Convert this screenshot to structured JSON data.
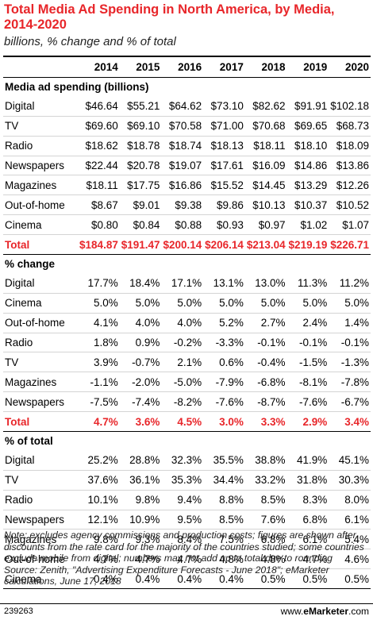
{
  "title": "Total Media Ad Spending in North America, by Media, 2014-2020",
  "subtitle": "billions, % change and % of total",
  "years": [
    "2014",
    "2015",
    "2016",
    "2017",
    "2018",
    "2019",
    "2020"
  ],
  "notes": "Note: excludes agency commissions and production costs; figures are shown after discounts from the rate card for the majority of the countries studied; some countries exclude mobile from digital; numbers may not add up to total due to rounding",
  "source": "Source: Zenith, \"Advertising Expenditure Forecasts - June 2018\"; eMarketer calculations, June 17, 2018",
  "footer": {
    "chart_id": "239263",
    "brand_prefix": "www.",
    "brand_main": "eMarketer",
    "brand_suffix": ".com"
  },
  "chart_data": {
    "type": "table",
    "title": "Total Media Ad Spending in North America, by Media, 2014-2020",
    "subtitle": "billions, % change and % of total",
    "columns": [
      "2014",
      "2015",
      "2016",
      "2017",
      "2018",
      "2019",
      "2020"
    ],
    "sections": [
      {
        "heading": "Media ad spending (billions)",
        "rows": [
          {
            "label": "Digital",
            "values": [
              "$46.64",
              "$55.21",
              "$64.62",
              "$73.10",
              "$82.62",
              "$91.91",
              "$102.18"
            ]
          },
          {
            "label": "TV",
            "values": [
              "$69.60",
              "$69.10",
              "$70.58",
              "$71.00",
              "$70.68",
              "$69.65",
              "$68.73"
            ]
          },
          {
            "label": "Radio",
            "values": [
              "$18.62",
              "$18.78",
              "$18.74",
              "$18.13",
              "$18.11",
              "$18.10",
              "$18.09"
            ]
          },
          {
            "label": "Newspapers",
            "values": [
              "$22.44",
              "$20.78",
              "$19.07",
              "$17.61",
              "$16.09",
              "$14.86",
              "$13.86"
            ]
          },
          {
            "label": "Magazines",
            "values": [
              "$18.11",
              "$17.75",
              "$16.86",
              "$15.52",
              "$14.45",
              "$13.29",
              "$12.26"
            ]
          },
          {
            "label": "Out-of-home",
            "values": [
              "$8.67",
              "$9.01",
              "$9.38",
              "$9.86",
              "$10.13",
              "$10.37",
              "$10.52"
            ]
          },
          {
            "label": "Cinema",
            "values": [
              "$0.80",
              "$0.84",
              "$0.88",
              "$0.93",
              "$0.97",
              "$1.02",
              "$1.07"
            ]
          }
        ],
        "total": {
          "label": "Total",
          "values": [
            "$184.87",
            "$191.47",
            "$200.14",
            "$206.14",
            "$213.04",
            "$219.19",
            "$226.71"
          ]
        }
      },
      {
        "heading": "% change",
        "rows": [
          {
            "label": "Digital",
            "values": [
              "17.7%",
              "18.4%",
              "17.1%",
              "13.1%",
              "13.0%",
              "11.3%",
              "11.2%"
            ]
          },
          {
            "label": "Cinema",
            "values": [
              "5.0%",
              "5.0%",
              "5.0%",
              "5.0%",
              "5.0%",
              "5.0%",
              "5.0%"
            ]
          },
          {
            "label": "Out-of-home",
            "values": [
              "4.1%",
              "4.0%",
              "4.0%",
              "5.2%",
              "2.7%",
              "2.4%",
              "1.4%"
            ]
          },
          {
            "label": "Radio",
            "values": [
              "1.8%",
              "0.9%",
              "-0.2%",
              "-3.3%",
              "-0.1%",
              "-0.1%",
              "-0.1%"
            ]
          },
          {
            "label": "TV",
            "values": [
              "3.9%",
              "-0.7%",
              "2.1%",
              "0.6%",
              "-0.4%",
              "-1.5%",
              "-1.3%"
            ]
          },
          {
            "label": "Magazines",
            "values": [
              "-1.1%",
              "-2.0%",
              "-5.0%",
              "-7.9%",
              "-6.8%",
              "-8.1%",
              "-7.8%"
            ]
          },
          {
            "label": "Newspapers",
            "values": [
              "-7.5%",
              "-7.4%",
              "-8.2%",
              "-7.6%",
              "-8.7%",
              "-7.6%",
              "-6.7%"
            ]
          }
        ],
        "total": {
          "label": "Total",
          "values": [
            "4.7%",
            "3.6%",
            "4.5%",
            "3.0%",
            "3.3%",
            "2.9%",
            "3.4%"
          ]
        }
      },
      {
        "heading": "% of total",
        "rows": [
          {
            "label": "Digital",
            "values": [
              "25.2%",
              "28.8%",
              "32.3%",
              "35.5%",
              "38.8%",
              "41.9%",
              "45.1%"
            ]
          },
          {
            "label": "TV",
            "values": [
              "37.6%",
              "36.1%",
              "35.3%",
              "34.4%",
              "33.2%",
              "31.8%",
              "30.3%"
            ]
          },
          {
            "label": "Radio",
            "values": [
              "10.1%",
              "9.8%",
              "9.4%",
              "8.8%",
              "8.5%",
              "8.3%",
              "8.0%"
            ]
          },
          {
            "label": "Newspapers",
            "values": [
              "12.1%",
              "10.9%",
              "9.5%",
              "8.5%",
              "7.6%",
              "6.8%",
              "6.1%"
            ]
          },
          {
            "label": "Magazines",
            "values": [
              "9.8%",
              "9.3%",
              "8.4%",
              "7.5%",
              "6.8%",
              "6.1%",
              "5.4%"
            ]
          },
          {
            "label": "Out-of-home",
            "values": [
              "4.7%",
              "4.7%",
              "4.7%",
              "4.8%",
              "4.8%",
              "4.7%",
              "4.6%"
            ]
          },
          {
            "label": "Cinema",
            "values": [
              "0.4%",
              "0.4%",
              "0.4%",
              "0.4%",
              "0.5%",
              "0.5%",
              "0.5%"
            ]
          }
        ]
      }
    ]
  },
  "colors": {
    "accent": "#e8262a",
    "rule": "#d4d4d4"
  }
}
